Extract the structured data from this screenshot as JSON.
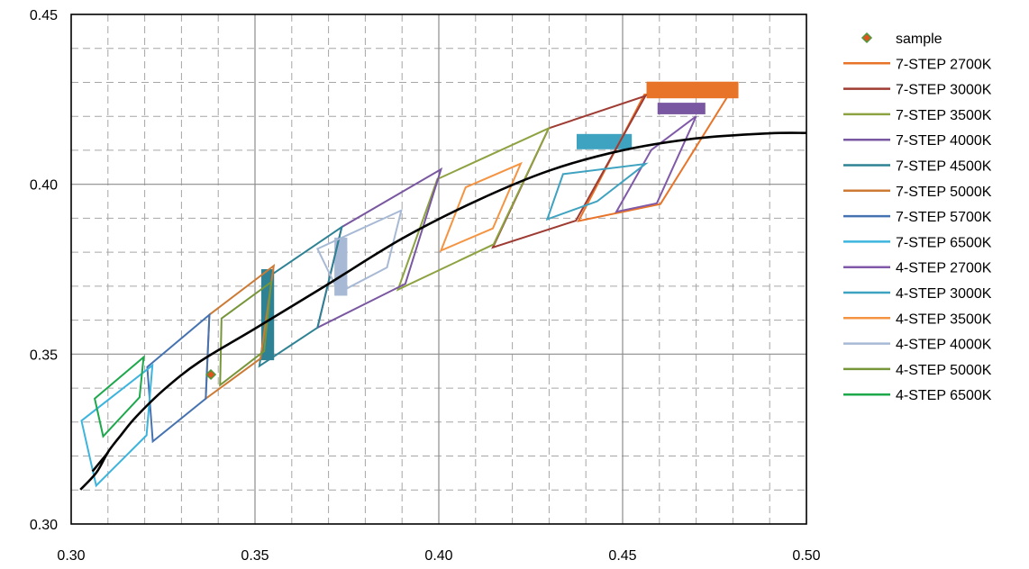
{
  "chart_data": {
    "type": "line",
    "title": "",
    "xlabel": "",
    "ylabel": "",
    "xlim": [
      0.3,
      0.5
    ],
    "ylim": [
      0.3,
      0.45
    ],
    "x_ticks": [
      "0.30",
      "0.35",
      "0.40",
      "0.45",
      "0.50"
    ],
    "y_ticks": [
      "0.30",
      "0.35",
      "0.40",
      "0.45"
    ],
    "grid": "major solid, minor dashed",
    "legend": "right",
    "series": [
      {
        "name": "sample",
        "kind": "marker",
        "color": "#e0551f",
        "edge": "#4a9a3a",
        "points": [
          [
            0.338,
            0.344
          ]
        ]
      },
      {
        "name": "7-STEP 2700K",
        "kind": "polygon",
        "color": "#e8742a",
        "points": [
          [
            0.4559,
            0.4264
          ],
          [
            0.4799,
            0.4282
          ],
          [
            0.4603,
            0.3942
          ],
          [
            0.438,
            0.3892
          ]
        ]
      },
      {
        "name": "7-STEP 3000K",
        "kind": "polygon",
        "color": "#9e3b32",
        "points": [
          [
            0.4299,
            0.4165
          ],
          [
            0.4562,
            0.426
          ],
          [
            0.4373,
            0.3893
          ],
          [
            0.4147,
            0.3814
          ]
        ]
      },
      {
        "name": "7-STEP 3500K",
        "kind": "polygon",
        "color": "#8da241",
        "points": [
          [
            0.3996,
            0.4015
          ],
          [
            0.4299,
            0.4165
          ],
          [
            0.4149,
            0.3823
          ],
          [
            0.3889,
            0.369
          ]
        ]
      },
      {
        "name": "7-STEP 4000K",
        "kind": "polygon",
        "color": "#7957a1",
        "points": [
          [
            0.3736,
            0.3874
          ],
          [
            0.4006,
            0.4044
          ],
          [
            0.3909,
            0.3707
          ],
          [
            0.367,
            0.3578
          ]
        ]
      },
      {
        "name": "7-STEP 4500K",
        "kind": "polygon",
        "color": "#2e8293",
        "points": [
          [
            0.3548,
            0.3736
          ],
          [
            0.3736,
            0.3874
          ],
          [
            0.367,
            0.3578
          ],
          [
            0.3512,
            0.3465
          ]
        ]
      },
      {
        "name": "7-STEP 5000K",
        "kind": "polygon",
        "color": "#cd7a35",
        "points": [
          [
            0.3376,
            0.3616
          ],
          [
            0.3551,
            0.376
          ],
          [
            0.3515,
            0.3487
          ],
          [
            0.3366,
            0.3369
          ]
        ]
      },
      {
        "name": "7-STEP 5700K",
        "kind": "polygon",
        "color": "#4573b1",
        "points": [
          [
            0.3207,
            0.3462
          ],
          [
            0.3376,
            0.3616
          ],
          [
            0.3366,
            0.3369
          ],
          [
            0.3222,
            0.3243
          ]
        ]
      },
      {
        "name": "7-STEP 6500K",
        "kind": "polygon",
        "color": "#3cb4dd",
        "points": [
          [
            0.3028,
            0.3304
          ],
          [
            0.3221,
            0.3467
          ],
          [
            0.3205,
            0.3261
          ],
          [
            0.3068,
            0.3113
          ]
        ]
      },
      {
        "name": "4-STEP 2700K",
        "kind": "polygon",
        "color": "#8059a8",
        "points": [
          [
            0.4578,
            0.4101
          ],
          [
            0.47,
            0.42
          ],
          [
            0.4593,
            0.3944
          ],
          [
            0.4483,
            0.3919
          ]
        ]
      },
      {
        "name": "4-STEP 3000K",
        "kind": "polygon",
        "color": "#3ea2c1",
        "points": [
          [
            0.4338,
            0.403
          ],
          [
            0.4562,
            0.406
          ],
          [
            0.4431,
            0.395
          ],
          [
            0.4295,
            0.3897
          ]
        ]
      },
      {
        "name": "4-STEP 3500K",
        "kind": "polygon",
        "color": "#f49442",
        "points": [
          [
            0.4073,
            0.3991
          ],
          [
            0.4223,
            0.4061
          ],
          [
            0.4147,
            0.387
          ],
          [
            0.4006,
            0.3805
          ]
        ]
      },
      {
        "name": "4-STEP 4000K",
        "kind": "polygon",
        "color": "#a7b9d5",
        "points": [
          [
            0.367,
            0.381
          ],
          [
            0.3898,
            0.3923
          ],
          [
            0.3859,
            0.3755
          ],
          [
            0.3728,
            0.3681
          ]
        ]
      },
      {
        "name": "4-STEP 5000K",
        "kind": "polygon",
        "color": "#77963a",
        "points": [
          [
            0.3409,
            0.3605
          ],
          [
            0.3544,
            0.3712
          ],
          [
            0.3525,
            0.3509
          ],
          [
            0.3405,
            0.3409
          ]
        ]
      },
      {
        "name": "4-STEP 6500K",
        "kind": "polygon",
        "color": "#1da84c",
        "points": [
          [
            0.3064,
            0.3369
          ],
          [
            0.3197,
            0.3491
          ],
          [
            0.3186,
            0.3373
          ],
          [
            0.3087,
            0.3258
          ]
        ]
      }
    ],
    "bars": [
      {
        "color": "#e8742a",
        "x": [
          0.4565,
          0.4815
        ],
        "y": [
          0.4253,
          0.4302
        ]
      },
      {
        "color": "#7957a1",
        "x": [
          0.4595,
          0.4725
        ],
        "y": [
          0.4206,
          0.424
        ]
      },
      {
        "color": "#3ea2c1",
        "x": [
          0.4375,
          0.4525
        ],
        "y": [
          0.4103,
          0.4148
        ]
      },
      {
        "color": "#a7b9d5",
        "x": [
          0.3716,
          0.3751
        ],
        "y": [
          0.3672,
          0.3843
        ]
      },
      {
        "color": "#2e8293",
        "x": [
          0.3517,
          0.3552
        ],
        "y": [
          0.3482,
          0.375
        ]
      }
    ],
    "planckian": {
      "name": "",
      "color": "#000000",
      "points": [
        [
          0.3025,
          0.3101
        ],
        [
          0.3069,
          0.3152
        ],
        [
          0.3101,
          0.3213
        ],
        [
          0.3135,
          0.3261
        ],
        [
          0.3177,
          0.3316
        ],
        [
          0.3255,
          0.3398
        ],
        [
          0.335,
          0.3478
        ],
        [
          0.35,
          0.3575
        ],
        [
          0.369,
          0.37
        ],
        [
          0.39,
          0.384
        ],
        [
          0.41,
          0.395
        ],
        [
          0.43,
          0.404
        ],
        [
          0.45,
          0.41
        ],
        [
          0.47,
          0.4135
        ],
        [
          0.49,
          0.415
        ],
        [
          0.5,
          0.4151
        ]
      ]
    },
    "planckian_short": {
      "color": "#000000",
      "points": [
        [
          0.3058,
          0.3155
        ],
        [
          0.308,
          0.3184
        ],
        [
          0.31,
          0.321
        ]
      ]
    }
  }
}
